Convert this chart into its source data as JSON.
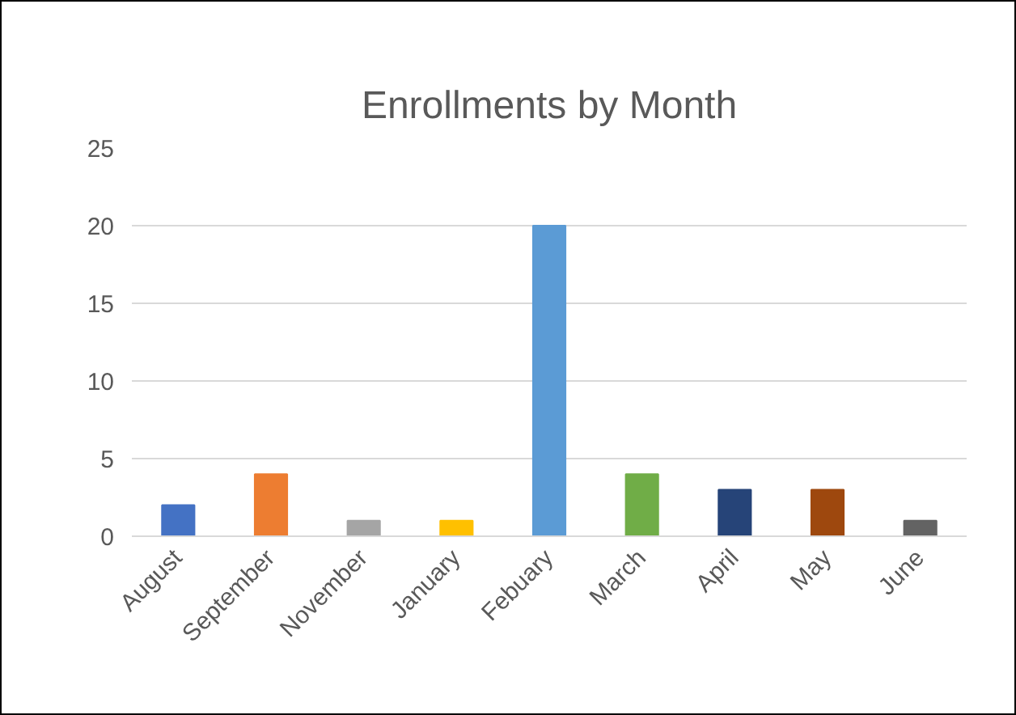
{
  "chart_data": {
    "type": "bar",
    "title": "Enrollments by Month",
    "categories": [
      "August",
      "September",
      "November",
      "January",
      "Febuary",
      "March",
      "April",
      "May",
      "June"
    ],
    "values": [
      2,
      4,
      1,
      1,
      20,
      4,
      3,
      3,
      1
    ],
    "colors": [
      "#4472c4",
      "#ed7d31",
      "#a5a5a5",
      "#ffc000",
      "#5b9bd5",
      "#70ad47",
      "#264478",
      "#9e480e",
      "#636363"
    ],
    "ylim": [
      0,
      25
    ],
    "yticks": [
      0,
      5,
      10,
      15,
      20,
      25
    ],
    "grid": "y"
  }
}
